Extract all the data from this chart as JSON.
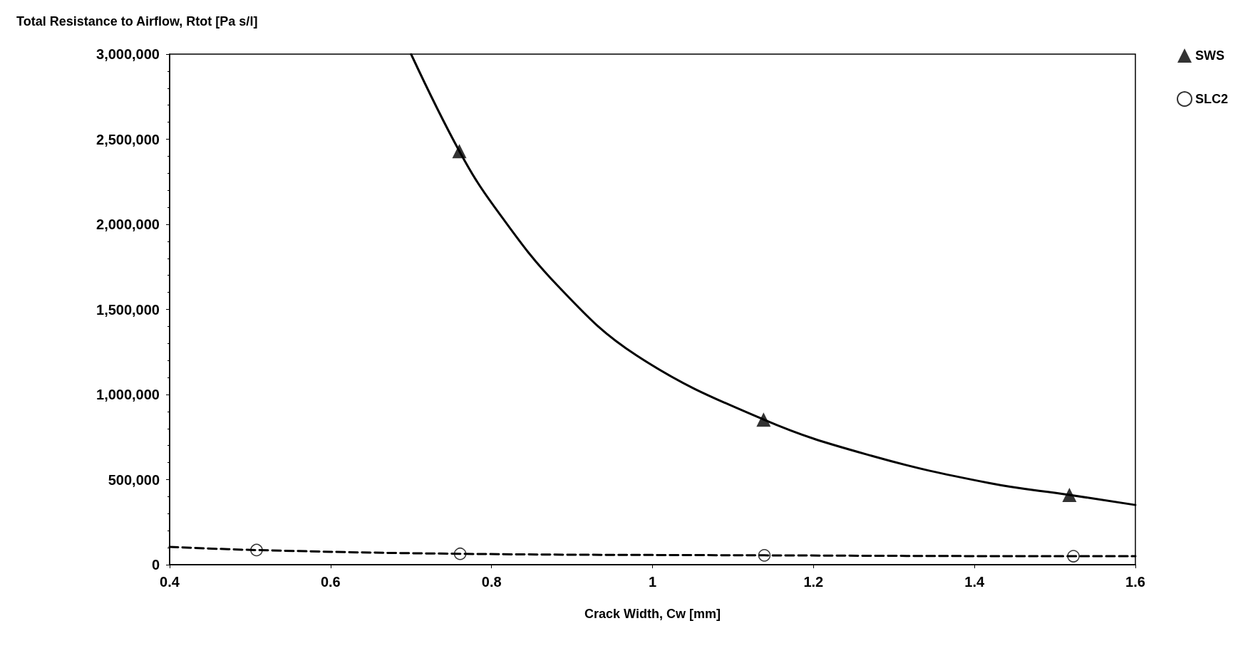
{
  "chart_data": {
    "type": "line",
    "xlabel": "Crack Width, Cw [mm]",
    "ylabel": "Total Resistance to Airflow, Rtot [Pa s/l]",
    "xlim": [
      0.4,
      1.6
    ],
    "xticks": [
      0.4,
      0.6,
      0.8,
      1,
      1.2,
      1.4,
      1.6
    ],
    "ylim": [
      0,
      3000000
    ],
    "yticks": [
      0,
      {
        "value": 500000,
        "label": "500,000"
      },
      {
        "value": 1000000,
        "label": "1,000,000"
      },
      {
        "value": 1500000,
        "label": "1,500,000"
      },
      {
        "value": 2000000,
        "label": "2,000,000"
      },
      {
        "value": 2500000,
        "label": "2,500,000"
      },
      {
        "value": 3000000,
        "label": "3,000,000"
      }
    ],
    "grid": false,
    "legend": "top right",
    "series": [
      {
        "type": "line",
        "color": "#000000",
        "line_style": "solid",
        "marker": "none",
        "x": [
          0.7,
          0.76,
          0.804,
          0.882,
          0.98,
          1.138,
          1.272,
          1.418,
          1.518,
          1.6
        ],
        "values": [
          3000000,
          2430000,
          2100000,
          1640000,
          1230000,
          853000,
          640000,
          480000,
          410000,
          351000
        ]
      },
      {
        "type": "scatter",
        "name": "SWS",
        "color": "#000000",
        "marker": "triangle",
        "x": [
          0.76,
          1.138,
          1.518
        ],
        "values": [
          2430000,
          853000,
          410000
        ]
      },
      {
        "type": "line",
        "color": "#000000",
        "line_style": "dashed",
        "marker": "none",
        "x": [
          0.4,
          0.508,
          0.761,
          1.139,
          1.523,
          1.6
        ],
        "values": [
          105000,
          86000,
          64000,
          55000,
          50000,
          50000
        ]
      },
      {
        "type": "scatter",
        "name": "SLC2",
        "color": "#000000",
        "marker": "circle",
        "x": [
          0.508,
          0.761,
          1.139,
          1.523
        ],
        "values": [
          86000,
          64000,
          55000,
          50000
        ]
      }
    ]
  }
}
